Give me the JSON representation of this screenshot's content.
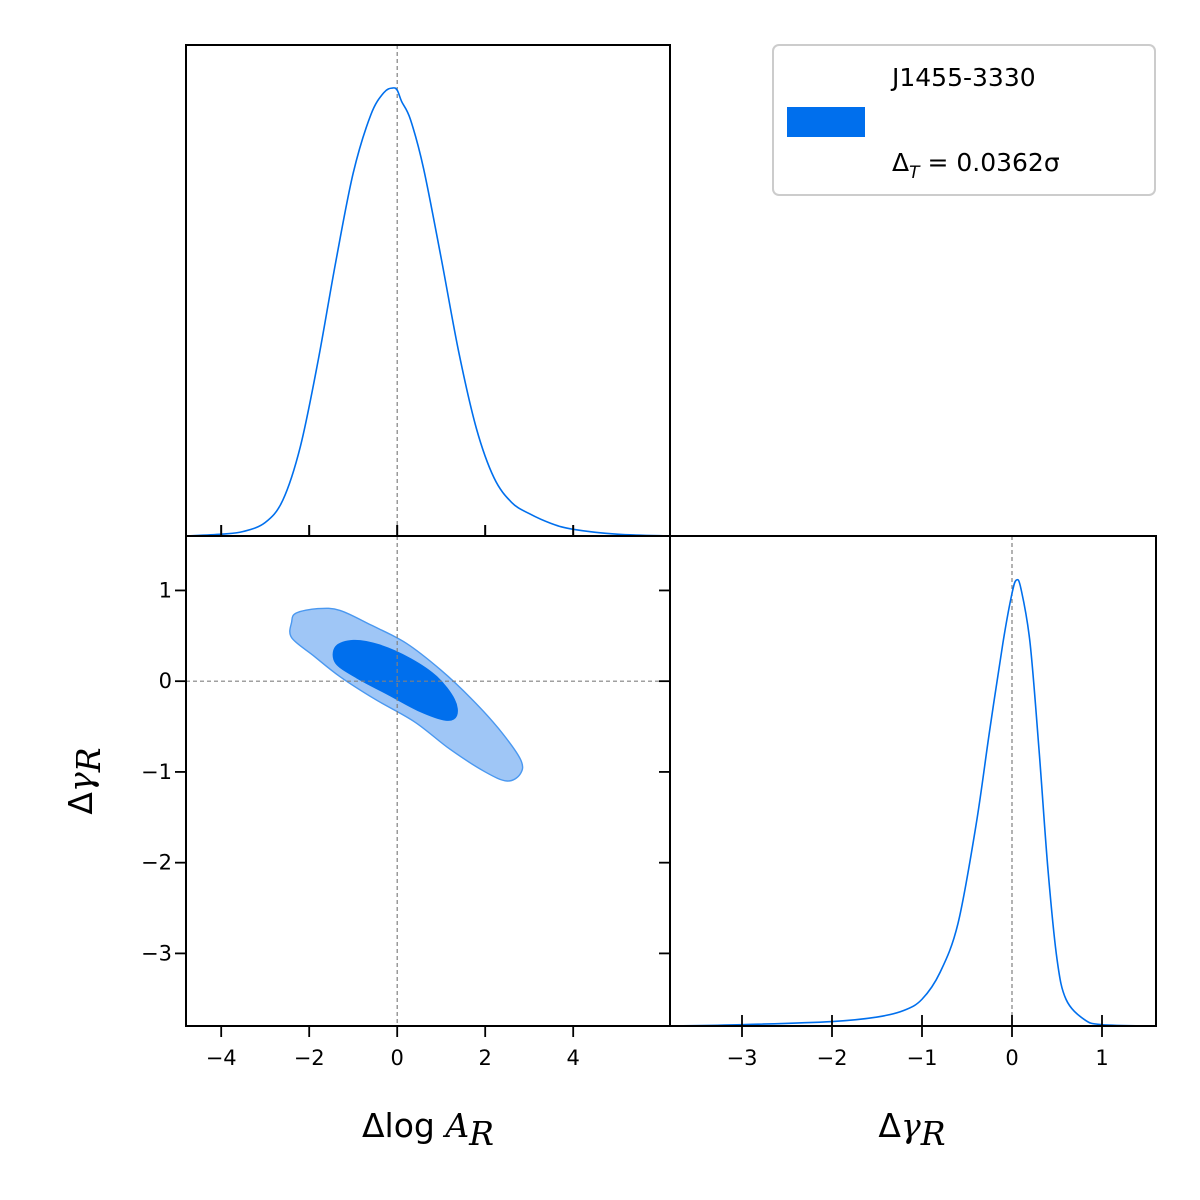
{
  "chart_data": {
    "type": "corner",
    "legend": {
      "position": "top-right",
      "entries": [
        {
          "label": "J1455-3330",
          "sublabel_prefix": "Δ",
          "sublabel_sub": "T",
          "sublabel_rest": " = 0.0362σ",
          "color": "#006fed"
        }
      ]
    },
    "params": [
      {
        "id": "logA",
        "label_prefix": "Δlog ",
        "label_sym": "A",
        "label_sub": "R",
        "range": [
          -4.8,
          6.2
        ],
        "ticks": [
          -4,
          -2,
          0,
          2,
          4
        ]
      },
      {
        "id": "gamma",
        "label_prefix": "Δ",
        "label_sym": "γ",
        "label_sub": "R",
        "range": [
          -3.8,
          1.6
        ],
        "ticks": [
          -3,
          -2,
          -1,
          0,
          1
        ]
      }
    ],
    "truth": [
      0,
      0
    ],
    "marginals": [
      {
        "param": "logA",
        "x": [
          -4.8,
          -4.0,
          -3.5,
          -3.0,
          -2.6,
          -2.2,
          -1.8,
          -1.4,
          -1.0,
          -0.6,
          -0.3,
          -0.1,
          0.0,
          0.1,
          0.3,
          0.6,
          1.0,
          1.4,
          1.8,
          2.2,
          2.6,
          3.0,
          3.5,
          4.0,
          5.0,
          6.2
        ],
        "y": [
          0.0,
          0.004,
          0.01,
          0.03,
          0.08,
          0.2,
          0.39,
          0.61,
          0.81,
          0.94,
          0.99,
          1.0,
          0.995,
          0.97,
          0.93,
          0.82,
          0.62,
          0.41,
          0.24,
          0.13,
          0.075,
          0.05,
          0.028,
          0.015,
          0.004,
          0.0
        ],
        "color": "#006fed"
      },
      {
        "param": "gamma",
        "x": [
          -3.8,
          -3.0,
          -2.0,
          -1.5,
          -1.2,
          -1.0,
          -0.8,
          -0.6,
          -0.4,
          -0.25,
          -0.1,
          0.0,
          0.05,
          0.1,
          0.2,
          0.3,
          0.4,
          0.5,
          0.6,
          0.8,
          1.0,
          1.6
        ],
        "y": [
          0.0,
          0.003,
          0.01,
          0.02,
          0.035,
          0.06,
          0.12,
          0.23,
          0.45,
          0.66,
          0.86,
          0.97,
          1.0,
          0.98,
          0.86,
          0.62,
          0.35,
          0.15,
          0.06,
          0.015,
          0.003,
          0.0
        ],
        "color": "#006fed"
      }
    ],
    "joint": {
      "x_param": "logA",
      "y_param": "gamma",
      "contours": [
        {
          "level": "95%",
          "fill": "#9fc6f6",
          "stroke": "#4a98f0",
          "points": [
            [
              -2.3,
              0.75
            ],
            [
              -1.8,
              0.8
            ],
            [
              -1.3,
              0.78
            ],
            [
              -0.6,
              0.62
            ],
            [
              0.2,
              0.42
            ],
            [
              1.0,
              0.12
            ],
            [
              1.7,
              -0.2
            ],
            [
              2.3,
              -0.52
            ],
            [
              2.8,
              -0.86
            ],
            [
              2.8,
              -1.02
            ],
            [
              2.5,
              -1.1
            ],
            [
              2.0,
              -1.0
            ],
            [
              1.2,
              -0.75
            ],
            [
              0.4,
              -0.45
            ],
            [
              -0.5,
              -0.2
            ],
            [
              -1.3,
              0.05
            ],
            [
              -1.9,
              0.28
            ],
            [
              -2.4,
              0.48
            ],
            [
              -2.4,
              0.65
            ]
          ]
        },
        {
          "level": "68%",
          "fill": "#006fed",
          "stroke": "#006fed",
          "points": [
            [
              -1.4,
              0.38
            ],
            [
              -1.0,
              0.45
            ],
            [
              -0.4,
              0.4
            ],
            [
              0.3,
              0.25
            ],
            [
              0.9,
              0.05
            ],
            [
              1.3,
              -0.2
            ],
            [
              1.35,
              -0.38
            ],
            [
              1.1,
              -0.43
            ],
            [
              0.5,
              -0.33
            ],
            [
              -0.2,
              -0.15
            ],
            [
              -0.9,
              0.03
            ],
            [
              -1.4,
              0.2
            ]
          ]
        }
      ]
    }
  }
}
